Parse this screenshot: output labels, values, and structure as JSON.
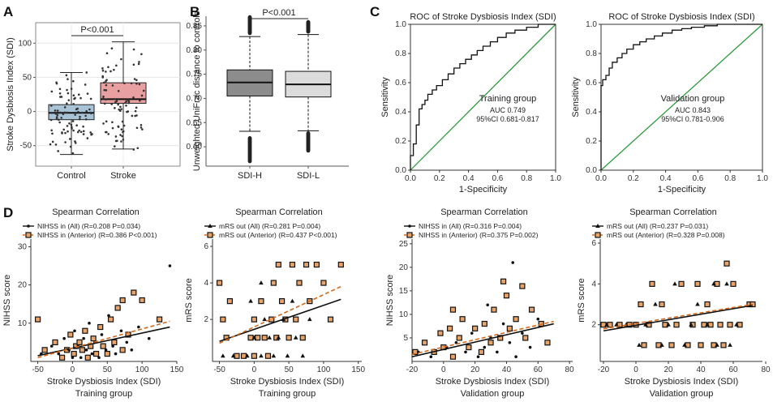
{
  "panels": {
    "A": "A",
    "B": "B",
    "C": "C",
    "D": "D"
  },
  "chart_data": [
    {
      "id": "A",
      "type": "box",
      "ylabel": "Stroke Dysbiosis Index (SDI)",
      "categories": [
        "Control",
        "Stroke"
      ],
      "ylim": [
        -80,
        130
      ],
      "yticks": [
        -50,
        0,
        50,
        100
      ],
      "colors": [
        "#a9c3d6",
        "#e8a0a0"
      ],
      "boxes": [
        {
          "name": "Control",
          "q1": -12,
          "median": -2,
          "q3": 10,
          "whisker_low": -63,
          "whisker_high": 57
        },
        {
          "name": "Stroke",
          "q1": 12,
          "median": 18,
          "q3": 42,
          "whisker_low": -55,
          "whisker_high": 102
        }
      ],
      "significance": "P<0.001"
    },
    {
      "id": "B",
      "type": "box",
      "ylabel": "Unweighted UniFrac distance to controls",
      "categories": [
        "SDI-H",
        "SDI-L"
      ],
      "ylim": [
        0.56,
        0.87
      ],
      "yticks": [
        0.6,
        0.65,
        0.7,
        0.75,
        0.8,
        0.85
      ],
      "ytick_labels": [
        "0.60",
        "0.65",
        "0.70",
        "0.75",
        "0.80",
        "0.85"
      ],
      "colors": [
        "#8c8c8c",
        "#dcdcdc"
      ],
      "boxes": [
        {
          "name": "SDI-H",
          "q1": 0.705,
          "median": 0.733,
          "q3": 0.759,
          "whisker_low": 0.632,
          "whisker_high": 0.828,
          "outliers_low": [
            0.57,
            0.618
          ],
          "outliers_high": [
            0.835,
            0.868
          ]
        },
        {
          "name": "SDI-L",
          "q1": 0.703,
          "median": 0.729,
          "q3": 0.756,
          "whisker_low": 0.633,
          "whisker_high": 0.832,
          "outliers_low": [
            0.592,
            0.628
          ],
          "outliers_high": [
            0.838,
            0.858
          ]
        }
      ],
      "significance": "P<0.001"
    },
    {
      "id": "C1",
      "type": "line",
      "title": "ROC of Stroke Dysbiosis Index (SDI)",
      "xlabel": "1-Specificity",
      "ylabel": "Sensitivity",
      "xlim": [
        0,
        1
      ],
      "ylim": [
        0,
        1
      ],
      "ticks": [
        0,
        0.2,
        0.4,
        0.6,
        0.8,
        1
      ],
      "tick_labels": [
        "0.0",
        "0.2",
        "0.4",
        "0.6",
        "0.8",
        "1.0"
      ],
      "group": "Training group",
      "auc": "AUC 0.749",
      "ci": "95%CI 0.681-0.817",
      "x": [
        0,
        0,
        0.02,
        0.02,
        0.04,
        0.04,
        0.06,
        0.06,
        0.08,
        0.08,
        0.1,
        0.1,
        0.12,
        0.12,
        0.15,
        0.15,
        0.18,
        0.18,
        0.22,
        0.22,
        0.26,
        0.26,
        0.3,
        0.3,
        0.34,
        0.34,
        0.38,
        0.38,
        0.42,
        0.42,
        0.46,
        0.46,
        0.5,
        0.5,
        0.55,
        0.55,
        0.6,
        0.6,
        0.66,
        0.66,
        0.72,
        0.72,
        0.8,
        0.8,
        0.88,
        0.88,
        1
      ],
      "y": [
        0,
        0.1,
        0.1,
        0.18,
        0.18,
        0.31,
        0.31,
        0.42,
        0.42,
        0.45,
        0.45,
        0.48,
        0.48,
        0.52,
        0.52,
        0.55,
        0.55,
        0.58,
        0.58,
        0.62,
        0.62,
        0.66,
        0.66,
        0.7,
        0.7,
        0.73,
        0.73,
        0.76,
        0.76,
        0.79,
        0.79,
        0.82,
        0.82,
        0.85,
        0.85,
        0.88,
        0.88,
        0.91,
        0.91,
        0.94,
        0.94,
        0.96,
        0.96,
        0.98,
        0.98,
        1,
        1
      ],
      "reference_color": "#2e9a3e"
    },
    {
      "id": "C2",
      "type": "line",
      "title": "ROC of Stroke Dysbiosis Index (SDI)",
      "xlabel": "1-Specificity",
      "ylabel": "Sensitivity",
      "xlim": [
        0,
        1
      ],
      "ylim": [
        0,
        1
      ],
      "ticks": [
        0,
        0.2,
        0.4,
        0.6,
        0.8,
        1
      ],
      "tick_labels": [
        "0.0",
        "0.2",
        "0.4",
        "0.6",
        "0.8",
        "1.0"
      ],
      "group": "Validation group",
      "auc": "AUC 0.843",
      "ci": "95%CI 0.781-0.906",
      "x": [
        0,
        0,
        0.01,
        0.01,
        0.03,
        0.03,
        0.05,
        0.05,
        0.07,
        0.07,
        0.1,
        0.1,
        0.13,
        0.13,
        0.16,
        0.16,
        0.2,
        0.2,
        0.24,
        0.24,
        0.28,
        0.28,
        0.33,
        0.33,
        0.38,
        0.38,
        0.44,
        0.44,
        0.5,
        0.5,
        0.56,
        0.56,
        0.64,
        0.64,
        0.72,
        0.72,
        0.82,
        0.82,
        1
      ],
      "y": [
        0,
        0.58,
        0.58,
        0.62,
        0.62,
        0.65,
        0.65,
        0.7,
        0.7,
        0.74,
        0.74,
        0.77,
        0.77,
        0.8,
        0.8,
        0.83,
        0.83,
        0.86,
        0.86,
        0.88,
        0.88,
        0.9,
        0.9,
        0.92,
        0.92,
        0.94,
        0.94,
        0.96,
        0.96,
        0.97,
        0.97,
        0.98,
        0.98,
        0.99,
        0.99,
        1,
        1,
        1,
        1
      ],
      "reference_color": "#2e9a3e"
    },
    {
      "id": "D1",
      "type": "scatter",
      "title": "Spearman Correlation",
      "xlabel": "Stroke Dysbiosis Index (SDI)",
      "ylabel": "NIHSS score",
      "group": "Training group",
      "xlim": [
        -60,
        150
      ],
      "ylim": [
        0,
        32
      ],
      "xticks": [
        -50,
        0,
        50,
        100,
        150
      ],
      "yticks": [
        10,
        20,
        30
      ],
      "series": [
        {
          "name": "NIHSS in (All) (R=0.208 P=0.034)",
          "marker": "dot",
          "line": "solid",
          "fit": [
            [
              -50,
              1.5
            ],
            [
              140,
              9
            ]
          ]
        },
        {
          "name": "NIHSS in (Anterior) (R=0.386 P<0.001)",
          "marker": "square",
          "line": "dashed",
          "fit": [
            [
              -50,
              1
            ],
            [
              140,
              10.5
            ]
          ]
        }
      ],
      "points_all": [
        [
          -45,
          2
        ],
        [
          -30,
          4
        ],
        [
          -20,
          2
        ],
        [
          -12,
          6
        ],
        [
          -5,
          3
        ],
        [
          0,
          1
        ],
        [
          3,
          8
        ],
        [
          8,
          4
        ],
        [
          12,
          1
        ],
        [
          16,
          6
        ],
        [
          20,
          3
        ],
        [
          24,
          10
        ],
        [
          28,
          2
        ],
        [
          32,
          5
        ],
        [
          38,
          1
        ],
        [
          42,
          7
        ],
        [
          48,
          3
        ],
        [
          52,
          12
        ],
        [
          58,
          4
        ],
        [
          62,
          2
        ],
        [
          70,
          8
        ],
        [
          78,
          5
        ],
        [
          85,
          3
        ],
        [
          95,
          9
        ],
        [
          110,
          6
        ],
        [
          140,
          25
        ]
      ],
      "points_anterior": [
        [
          -50,
          11
        ],
        [
          -40,
          3
        ],
        [
          -25,
          5
        ],
        [
          -15,
          1
        ],
        [
          -8,
          3
        ],
        [
          -3,
          7
        ],
        [
          2,
          2
        ],
        [
          5,
          4
        ],
        [
          10,
          5
        ],
        [
          14,
          3
        ],
        [
          18,
          8
        ],
        [
          22,
          1
        ],
        [
          26,
          4
        ],
        [
          30,
          6
        ],
        [
          34,
          2
        ],
        [
          40,
          9
        ],
        [
          44,
          4
        ],
        [
          50,
          2
        ],
        [
          55,
          11
        ],
        [
          60,
          5
        ],
        [
          65,
          14
        ],
        [
          72,
          3
        ],
        [
          80,
          7
        ],
        [
          88,
          18
        ],
        [
          100,
          16
        ],
        [
          125,
          11
        ],
        [
          72,
          16
        ]
      ],
      "line_color_anterior": "#d2691e"
    },
    {
      "id": "D2",
      "type": "scatter",
      "title": "Spearman Correlation",
      "xlabel": "Stroke Dysbiosis Index (SDI)",
      "ylabel": "mRS score",
      "group": "Training group",
      "xlim": [
        -60,
        155
      ],
      "ylim": [
        -0.3,
        6.4
      ],
      "xticks": [
        -50,
        0,
        50,
        100,
        150
      ],
      "yticks": [
        2,
        4,
        6
      ],
      "series": [
        {
          "name": "mRS out  (All) (R=0.281 P=0.004)",
          "marker": "triangle",
          "line": "solid",
          "fit": [
            [
              -50,
              0.8
            ],
            [
              125,
              3.1
            ]
          ]
        },
        {
          "name": "mRS out  (Anterior) (R=0.437 P<0.001)",
          "marker": "square",
          "line": "dashed",
          "fit": [
            [
              -50,
              0.7
            ],
            [
              125,
              3.8
            ]
          ]
        }
      ],
      "points_all": [
        [
          -45,
          0
        ],
        [
          -30,
          0
        ],
        [
          -10,
          0
        ],
        [
          0,
          1
        ],
        [
          10,
          0
        ],
        [
          15,
          2
        ],
        [
          22,
          1
        ],
        [
          28,
          0
        ],
        [
          35,
          1
        ],
        [
          42,
          2
        ],
        [
          48,
          0
        ],
        [
          55,
          3
        ],
        [
          60,
          1
        ],
        [
          70,
          0
        ],
        [
          80,
          2
        ],
        [
          10,
          4
        ],
        [
          -5,
          3
        ]
      ],
      "points_anterior": [
        [
          -50,
          4
        ],
        [
          -45,
          2
        ],
        [
          -40,
          1
        ],
        [
          -35,
          3
        ],
        [
          -25,
          0
        ],
        [
          -15,
          0
        ],
        [
          -5,
          1
        ],
        [
          0,
          2
        ],
        [
          5,
          1
        ],
        [
          10,
          3
        ],
        [
          15,
          1
        ],
        [
          20,
          0
        ],
        [
          25,
          2
        ],
        [
          28,
          4
        ],
        [
          32,
          1
        ],
        [
          35,
          5
        ],
        [
          40,
          3
        ],
        [
          45,
          2
        ],
        [
          50,
          1
        ],
        [
          55,
          5
        ],
        [
          60,
          2
        ],
        [
          65,
          4
        ],
        [
          70,
          1
        ],
        [
          75,
          5
        ],
        [
          80,
          3
        ],
        [
          90,
          5
        ],
        [
          100,
          4
        ],
        [
          110,
          2
        ],
        [
          125,
          5
        ],
        [
          0,
          0
        ]
      ],
      "line_color_anterior": "#d2691e"
    },
    {
      "id": "D3",
      "type": "scatter",
      "title": "Spearman Correlation",
      "xlabel": "Stroke Dysbiosis Index (SDI)",
      "ylabel": "NIHSS score",
      "group": "Validation group",
      "xlim": [
        -20,
        82
      ],
      "ylim": [
        0,
        26
      ],
      "xticks": [
        -20,
        0,
        20,
        40,
        60,
        80
      ],
      "yticks": [
        5,
        10,
        15,
        20,
        25
      ],
      "series": [
        {
          "name": "NIHSS in (All) (R=0.316  P=0.004)",
          "marker": "dot",
          "line": "solid",
          "fit": [
            [
              -20,
              1
            ],
            [
              70,
              8
            ]
          ]
        },
        {
          "name": "NIHSS in (Anterior) (R=0.375 P=0.002)",
          "marker": "square",
          "line": "dashed",
          "fit": [
            [
              -20,
              1.5
            ],
            [
              70,
              8.5
            ]
          ]
        }
      ],
      "points_all": [
        [
          -16,
          2
        ],
        [
          -8,
          1
        ],
        [
          2,
          3
        ],
        [
          8,
          4
        ],
        [
          14,
          2
        ],
        [
          18,
          6
        ],
        [
          22,
          1
        ],
        [
          26,
          3
        ],
        [
          30,
          5
        ],
        [
          34,
          2
        ],
        [
          38,
          8
        ],
        [
          42,
          4
        ],
        [
          46,
          1
        ],
        [
          50,
          6
        ],
        [
          55,
          3
        ],
        [
          60,
          9
        ],
        [
          28,
          12
        ],
        [
          44,
          21
        ]
      ],
      "points_anterior": [
        [
          -18,
          2
        ],
        [
          -12,
          4
        ],
        [
          -6,
          2
        ],
        [
          -2,
          6
        ],
        [
          0,
          3
        ],
        [
          4,
          7
        ],
        [
          6,
          1
        ],
        [
          10,
          5
        ],
        [
          12,
          9
        ],
        [
          16,
          3
        ],
        [
          20,
          7
        ],
        [
          24,
          2
        ],
        [
          26,
          8
        ],
        [
          30,
          4
        ],
        [
          32,
          11
        ],
        [
          36,
          5
        ],
        [
          40,
          14
        ],
        [
          42,
          7
        ],
        [
          46,
          9
        ],
        [
          50,
          16
        ],
        [
          52,
          5
        ],
        [
          56,
          11
        ],
        [
          62,
          8
        ],
        [
          66,
          4
        ],
        [
          6,
          11
        ],
        [
          38,
          17
        ]
      ],
      "line_color_anterior": "#d2691e"
    },
    {
      "id": "D4",
      "type": "scatter",
      "title": "Spearman Correlation",
      "xlabel": "Stroke Dysbiosis Index (SDI)",
      "ylabel": "mRS score",
      "group": "Validation group",
      "xlim": [
        -22,
        78
      ],
      "ylim": [
        0.2,
        6.2
      ],
      "xticks": [
        -20,
        0,
        20,
        40,
        60,
        80
      ],
      "yticks": [
        2,
        4,
        6
      ],
      "series": [
        {
          "name": "mRS out (All) (R=0.237  P=0.031)",
          "marker": "triangle",
          "line": "solid",
          "fit": [
            [
              -20,
              1.7
            ],
            [
              72,
              2.95
            ]
          ]
        },
        {
          "name": "mRS out (Anterior) (R=0.328 P=0.008)",
          "marker": "square",
          "line": "dashed",
          "fit": [
            [
              -20,
              1.8
            ],
            [
              72,
              3.0
            ]
          ]
        }
      ],
      "points_all": [
        [
          -18,
          2
        ],
        [
          -12,
          2
        ],
        [
          -6,
          2
        ],
        [
          2,
          1
        ],
        [
          6,
          2
        ],
        [
          12,
          3
        ],
        [
          16,
          1
        ],
        [
          20,
          2
        ],
        [
          24,
          4
        ],
        [
          30,
          1
        ],
        [
          34,
          2
        ],
        [
          38,
          3
        ],
        [
          44,
          2
        ],
        [
          50,
          1
        ],
        [
          56,
          4
        ],
        [
          62,
          2
        ],
        [
          58,
          1
        ],
        [
          48,
          4
        ]
      ],
      "points_anterior": [
        [
          -20,
          2
        ],
        [
          -16,
          2
        ],
        [
          -10,
          2
        ],
        [
          -4,
          2
        ],
        [
          0,
          2
        ],
        [
          3,
          3
        ],
        [
          5,
          1
        ],
        [
          8,
          2
        ],
        [
          10,
          4
        ],
        [
          14,
          1
        ],
        [
          16,
          3
        ],
        [
          18,
          2
        ],
        [
          22,
          1
        ],
        [
          25,
          2
        ],
        [
          28,
          4
        ],
        [
          32,
          1
        ],
        [
          35,
          2
        ],
        [
          38,
          4
        ],
        [
          40,
          1
        ],
        [
          42,
          2
        ],
        [
          44,
          3
        ],
        [
          46,
          2
        ],
        [
          48,
          1
        ],
        [
          50,
          4
        ],
        [
          52,
          2
        ],
        [
          54,
          1
        ],
        [
          56,
          5
        ],
        [
          58,
          2
        ],
        [
          60,
          4
        ],
        [
          64,
          2
        ],
        [
          70,
          3
        ],
        [
          72,
          3
        ]
      ],
      "line_color_anterior": "#d2691e"
    }
  ]
}
